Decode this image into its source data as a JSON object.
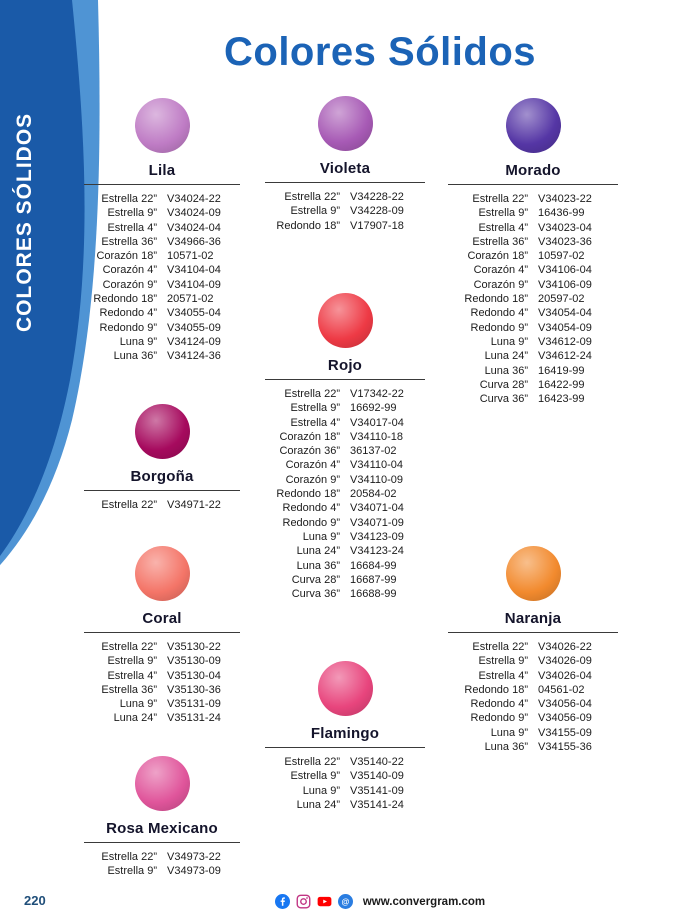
{
  "title": "Colores Sólidos",
  "sidebar": {
    "label": "COLORES SÓLIDOS"
  },
  "footer": {
    "page_number": "220",
    "website": "www.convergram.com",
    "icons": [
      "facebook-icon",
      "instagram-icon",
      "youtube-icon",
      "at-icon"
    ]
  },
  "colors": {
    "title_blue": "#1b63b6",
    "sidebar_dark": "#1a5aa8",
    "sidebar_light": "#4f94d4"
  },
  "sections": [
    {
      "name": "Lila",
      "color": "#bf7cc5",
      "items": [
        {
          "size": "Estrella 22”",
          "code": "V34024-22"
        },
        {
          "size": "Estrella 9”",
          "code": "V34024-09"
        },
        {
          "size": "Estrella 4”",
          "code": "V34024-04"
        },
        {
          "size": "Estrella 36”",
          "code": "V34966-36"
        },
        {
          "size": "Corazón 18”",
          "code": "10571-02"
        },
        {
          "size": "Corazón 4”",
          "code": "V34104-04"
        },
        {
          "size": "Corazón 9”",
          "code": "V34104-09"
        },
        {
          "size": "Redondo 18”",
          "code": "20571-02"
        },
        {
          "size": "Redondo 4”",
          "code": "V34055-04"
        },
        {
          "size": "Redondo 9”",
          "code": "V34055-09"
        },
        {
          "size": "Luna 9”",
          "code": "V34124-09"
        },
        {
          "size": "Luna 36”",
          "code": "V34124-36"
        }
      ]
    },
    {
      "name": "Violeta",
      "color": "#a75ab5",
      "items": [
        {
          "size": "Estrella 22”",
          "code": "V34228-22"
        },
        {
          "size": "Estrella 9”",
          "code": "V34228-09"
        },
        {
          "size": "Redondo 18”",
          "code": "V17907-18"
        }
      ]
    },
    {
      "name": "Morado",
      "color": "#5536a5",
      "items": [
        {
          "size": "Estrella 22”",
          "code": "V34023-22"
        },
        {
          "size": "Estrella 9”",
          "code": "16436-99"
        },
        {
          "size": "Estrella 4”",
          "code": "V34023-04"
        },
        {
          "size": "Estrella 36”",
          "code": "V34023-36"
        },
        {
          "size": "Corazón 18”",
          "code": "10597-02"
        },
        {
          "size": "Corazón 4”",
          "code": "V34106-04"
        },
        {
          "size": "Corazón 9”",
          "code": "V34106-09"
        },
        {
          "size": "Redondo 18”",
          "code": "20597-02"
        },
        {
          "size": "Redondo 4”",
          "code": "V34054-04"
        },
        {
          "size": "Redondo 9”",
          "code": "V34054-09"
        },
        {
          "size": "Luna 9”",
          "code": "V34612-09"
        },
        {
          "size": "Luna 24”",
          "code": "V34612-24"
        },
        {
          "size": "Luna 36”",
          "code": "16419-99"
        },
        {
          "size": "Curva 28”",
          "code": "16422-99"
        },
        {
          "size": "Curva 36”",
          "code": "16423-99"
        }
      ]
    },
    {
      "name": "Borgoña",
      "color": "#a60a5e",
      "items": [
        {
          "size": "Estrella 22”",
          "code": "V34971-22"
        }
      ]
    },
    {
      "name": "Rojo",
      "color": "#ee3a45",
      "items": [
        {
          "size": "Estrella 22”",
          "code": "V17342-22"
        },
        {
          "size": "Estrella 9”",
          "code": "16692-99"
        },
        {
          "size": "Estrella 4”",
          "code": "V34017-04"
        },
        {
          "size": "Corazón 18”",
          "code": "V34110-18"
        },
        {
          "size": "Corazón 36”",
          "code": "36137-02"
        },
        {
          "size": "Corazón 4”",
          "code": "V34110-04"
        },
        {
          "size": "Corazón 9”",
          "code": "V34110-09"
        },
        {
          "size": "Redondo 18”",
          "code": "20584-02"
        },
        {
          "size": "Redondo 4”",
          "code": "V34071-04"
        },
        {
          "size": "Redondo 9”",
          "code": "V34071-09"
        },
        {
          "size": "Luna 9”",
          "code": "V34123-09"
        },
        {
          "size": "Luna 24”",
          "code": "V34123-24"
        },
        {
          "size": "Luna 36”",
          "code": "16684-99"
        },
        {
          "size": "Curva 28”",
          "code": "16687-99"
        },
        {
          "size": "Curva 36”",
          "code": "16688-99"
        }
      ]
    },
    {
      "name": "Coral",
      "color": "#f47568",
      "items": [
        {
          "size": "Estrella 22”",
          "code": "V35130-22"
        },
        {
          "size": "Estrella 9”",
          "code": "V35130-09"
        },
        {
          "size": "Estrella 4”",
          "code": "V35130-04"
        },
        {
          "size": "Estrella 36”",
          "code": "V35130-36"
        },
        {
          "size": "Luna 9”",
          "code": "V35131-09"
        },
        {
          "size": "Luna 24”",
          "code": "V35131-24"
        }
      ]
    },
    {
      "name": "Naranja",
      "color": "#f28a2e",
      "items": [
        {
          "size": "Estrella 22”",
          "code": "V34026-22"
        },
        {
          "size": "Estrella 9”",
          "code": "V34026-09"
        },
        {
          "size": "Estrella 4”",
          "code": "V34026-04"
        },
        {
          "size": "Redondo 18”",
          "code": "04561-02"
        },
        {
          "size": "Redondo 4”",
          "code": "V34056-04"
        },
        {
          "size": "Redondo 9”",
          "code": "V34056-09"
        },
        {
          "size": "Luna 9”",
          "code": "V34155-09"
        },
        {
          "size": "Luna 36”",
          "code": "V34155-36"
        }
      ]
    },
    {
      "name": "Flamingo",
      "color": "#e8457d",
      "items": [
        {
          "size": "Estrella 22”",
          "code": "V35140-22"
        },
        {
          "size": "Estrella 9”",
          "code": "V35140-09"
        },
        {
          "size": "Luna 9”",
          "code": "V35141-09"
        },
        {
          "size": "Luna 24”",
          "code": "V35141-24"
        }
      ]
    },
    {
      "name": "Rosa Mexicano",
      "color": "#e0559b",
      "items": [
        {
          "size": "Estrella 22”",
          "code": "V34973-22"
        },
        {
          "size": "Estrella 9”",
          "code": "V34973-09"
        }
      ]
    }
  ]
}
